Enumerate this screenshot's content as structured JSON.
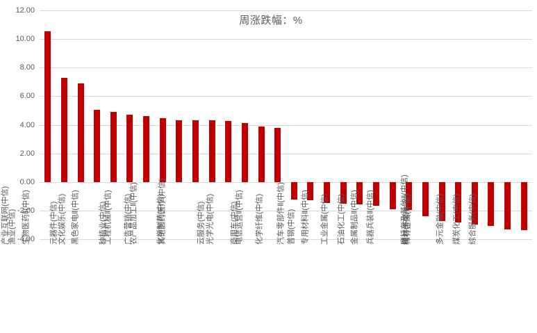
{
  "chart_data": {
    "type": "bar",
    "title": "周涨跌幅：%",
    "xlabel": "",
    "ylabel": "",
    "categories": [
      "渔业(中信)",
      "产业互联网(中信)",
      "生物医药Ⅱ(中信)",
      "元器件(中信)",
      "文化娱乐(中信)",
      "黑色家电Ⅱ(中信)",
      "种植业(中信)",
      "工程机械Ⅱ(中信)",
      "广告营销(中信)",
      "农产品加工Ⅱ(中信)",
      "化学制药(中信)",
      "其他医药医疗(中信)",
      "云服务(中信)",
      "光学光电(中信)",
      "商用车(中信)",
      "电信运营Ⅱ(中信)",
      "化学纤维(中信)",
      "普钢(中信)",
      "汽车零部件Ⅱ(中信)",
      "专用材料Ⅱ(中信)",
      "工业金属(中信)",
      "石油化工(中信)",
      "金属制品Ⅱ(中信)",
      "兵器兵装Ⅱ(中信)",
      "特材(中信)",
      "稀有金属(中信)",
      "摩托车及其他Ⅱ(中信)",
      "多元金融(中信)",
      "煤炭化工(中信)",
      "综合服务(中信)"
    ],
    "values": [
      10.55,
      7.3,
      6.9,
      5.05,
      4.9,
      4.72,
      4.6,
      4.48,
      4.33,
      4.32,
      4.3,
      4.28,
      4.12,
      3.9,
      3.76,
      -1.24,
      -1.3,
      -1.45,
      -1.5,
      -1.58,
      -1.66,
      -1.89,
      -1.97,
      -2.4,
      -2.74,
      -2.84,
      -2.98,
      -3.08,
      -3.33,
      -3.37
    ],
    "ylim": [
      -4,
      12
    ],
    "ytick_step": 2,
    "ytick_labels": [
      "12.00",
      "10.00",
      "8.00",
      "6.00",
      "4.00",
      "2.00",
      "0.00",
      "-2.00",
      "-4.00"
    ],
    "grid": "horizontal-only",
    "legend": "none",
    "x_labels_rotation_deg": -90,
    "colors": {
      "bar": "#c00000",
      "text": "#595959",
      "gridline": "#d9d9d9",
      "background": "#ffffff"
    }
  }
}
